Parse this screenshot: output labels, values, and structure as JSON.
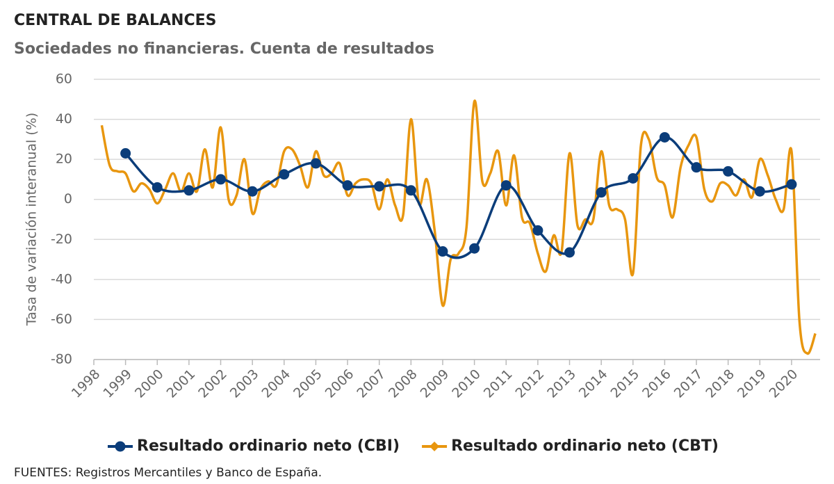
{
  "chart_data": {
    "type": "line",
    "title": "CENTRAL DE BALANCES",
    "subtitle": "Sociedades no financieras. Cuenta de resultados",
    "ylabel": "Tasa de variación interanual (%)",
    "source": "FUENTES: Registros Mercantiles y Banco de España.",
    "xlim": [
      1998,
      2020.9
    ],
    "xticks": [
      1998,
      1999,
      2000,
      2001,
      2002,
      2003,
      2004,
      2005,
      2006,
      2007,
      2008,
      2009,
      2010,
      2011,
      2012,
      2013,
      2014,
      2015,
      2016,
      2017,
      2018,
      2019,
      2020
    ],
    "ylim": [
      -80,
      60
    ],
    "yticks": [
      -80,
      -60,
      -40,
      -20,
      0,
      20,
      40,
      60
    ],
    "grid": true,
    "legend": "bottom",
    "series": [
      {
        "name": "Resultado ordinario neto (CBI)",
        "color": "#0b3d7a",
        "marker": "circle",
        "x": [
          1999,
          2000,
          2001,
          2002,
          2003,
          2004,
          2005,
          2006,
          2007,
          2008,
          2009,
          2010,
          2011,
          2012,
          2013,
          2014,
          2015,
          2016,
          2017,
          2018,
          2019,
          2020
        ],
        "values": [
          23,
          6,
          4.5,
          10,
          4,
          12.5,
          18,
          7,
          6.5,
          4.5,
          -26,
          -24.5,
          7,
          -15.5,
          -26.5,
          3.5,
          10.5,
          31,
          16,
          14,
          4,
          7.5
        ]
      },
      {
        "name": "Resultado ordinario neto (CBT)",
        "color": "#e8960f",
        "marker": "none",
        "x": [
          1998.25,
          1998.5,
          1998.75,
          1999,
          1999.25,
          1999.5,
          1999.75,
          2000,
          2000.25,
          2000.5,
          2000.75,
          2001,
          2001.25,
          2001.5,
          2001.75,
          2002,
          2002.25,
          2002.5,
          2002.75,
          2003,
          2003.25,
          2003.5,
          2003.75,
          2004,
          2004.25,
          2004.5,
          2004.75,
          2005,
          2005.25,
          2005.5,
          2005.75,
          2006,
          2006.25,
          2006.5,
          2006.75,
          2007,
          2007.25,
          2007.5,
          2007.75,
          2008,
          2008.25,
          2008.5,
          2008.75,
          2009,
          2009.25,
          2009.5,
          2009.75,
          2010,
          2010.25,
          2010.5,
          2010.75,
          2011,
          2011.25,
          2011.5,
          2011.75,
          2012,
          2012.25,
          2012.5,
          2012.75,
          2013,
          2013.25,
          2013.5,
          2013.75,
          2014,
          2014.25,
          2014.5,
          2014.75,
          2015,
          2015.25,
          2015.5,
          2015.75,
          2016,
          2016.25,
          2016.5,
          2016.75,
          2017,
          2017.25,
          2017.5,
          2017.75,
          2018,
          2018.25,
          2018.5,
          2018.75,
          2019,
          2019.25,
          2019.5,
          2019.75,
          2020,
          2020.25,
          2020.5,
          2020.75
        ],
        "values": [
          37,
          17,
          14,
          13,
          4,
          8,
          5,
          -2,
          5,
          13,
          4,
          13,
          4,
          25,
          6,
          36,
          0,
          2,
          20,
          -7,
          5,
          9,
          7,
          24,
          25,
          17,
          6,
          24,
          12,
          13,
          18,
          2,
          8,
          10,
          8,
          -5,
          10,
          -3,
          -8,
          40,
          -2,
          10,
          -16,
          -53,
          -30,
          -27,
          -14,
          49,
          9,
          13,
          24,
          -3,
          22,
          -9,
          -12,
          -27,
          -36,
          -18,
          -26,
          23,
          -13,
          -10,
          -10,
          24,
          -3,
          -5,
          -10,
          -37,
          27,
          30,
          11,
          7,
          -9,
          16,
          27,
          31,
          5,
          -1,
          8,
          7,
          2,
          10,
          1,
          20,
          12,
          0,
          -5,
          24,
          -61,
          -77,
          -67
        ]
      }
    ]
  }
}
